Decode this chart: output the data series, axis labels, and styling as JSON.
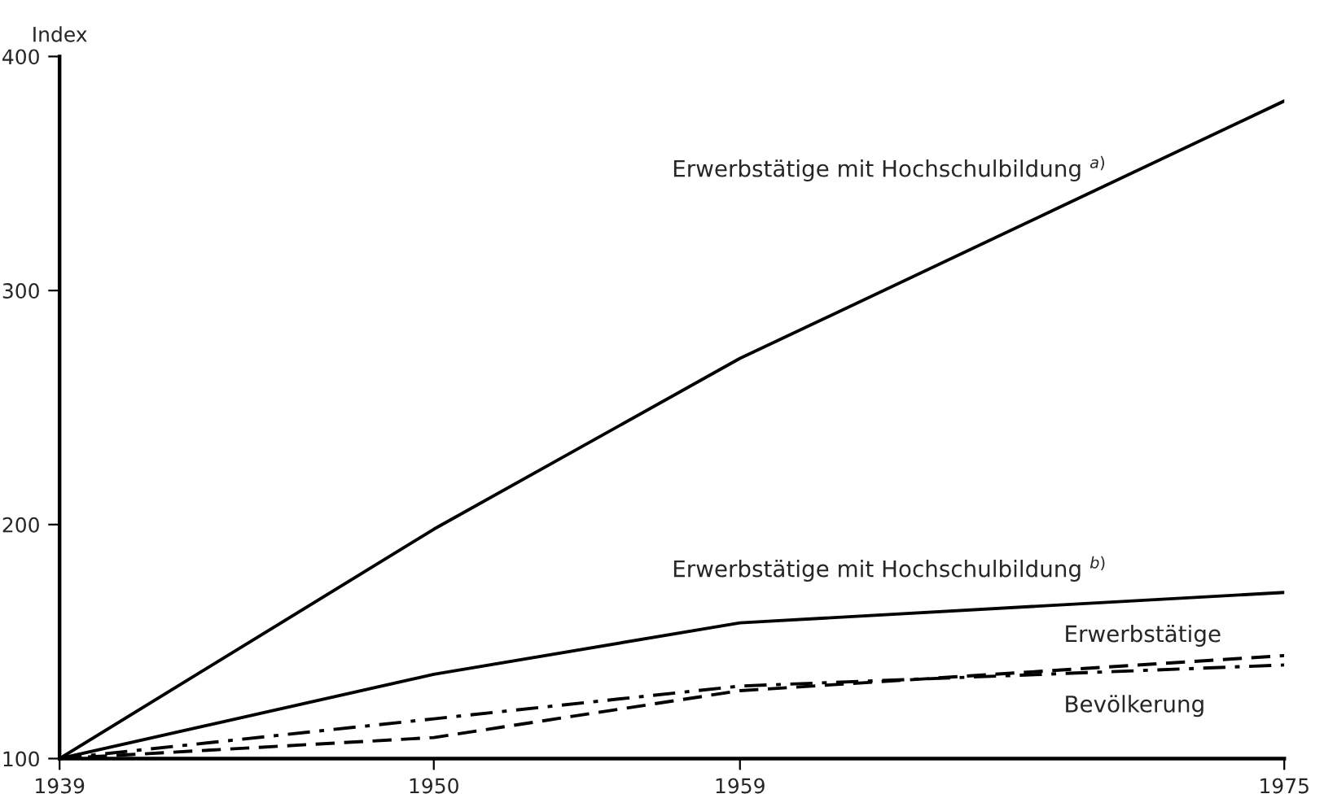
{
  "chart_data": {
    "type": "line",
    "ylabel": "Index",
    "x": [
      1939,
      1950,
      1959,
      1975
    ],
    "xlim": [
      1939,
      1975
    ],
    "xticks": [
      1939,
      1950,
      1959,
      1975
    ],
    "ylim": [
      100,
      400
    ],
    "yticks": [
      100,
      200,
      300,
      400
    ],
    "grid": false,
    "legend": false,
    "marker": "none",
    "series": [
      {
        "name": "Erwerbstätige mit Hochschulbildung $^{a)}$",
        "color": "#000000",
        "line_style": "solid",
        "values": [
          100,
          198,
          271,
          381
        ]
      },
      {
        "name": "Erwerbstätige mit Hochschulbildung $^{b)}$",
        "color": "#000000",
        "line_style": "solid",
        "values": [
          100,
          136,
          158,
          171
        ]
      },
      {
        "name": "Erwerbstätige",
        "color": "#000000",
        "line_style": "dashed",
        "values": [
          100,
          109,
          129,
          144
        ]
      },
      {
        "name": "Bevölkerung",
        "color": "#000000",
        "line_style": "dashdot",
        "values": [
          100,
          117,
          131,
          140
        ]
      }
    ]
  }
}
